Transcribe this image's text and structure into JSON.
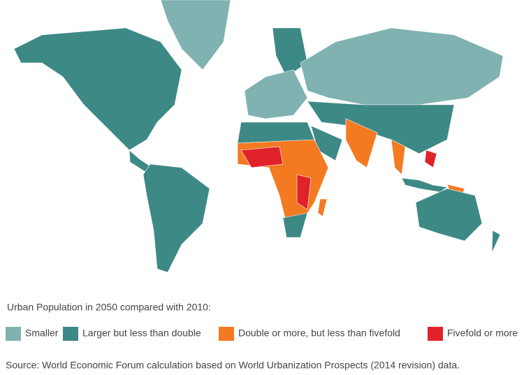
{
  "legend": {
    "title": "Urban Population in 2050 compared with 2010:",
    "items": [
      {
        "label": "Smaller",
        "color": "#7fb2b0"
      },
      {
        "label": "Larger but less than double",
        "color": "#3d8986"
      },
      {
        "label": "Double or more, but less than fivefold",
        "color": "#f47a22"
      },
      {
        "label": "Fivefold or more",
        "color": "#e1222a"
      }
    ]
  },
  "source": "Source: World Economic Forum calculation based on World Urbanization Prospects (2014 revision) data."
}
